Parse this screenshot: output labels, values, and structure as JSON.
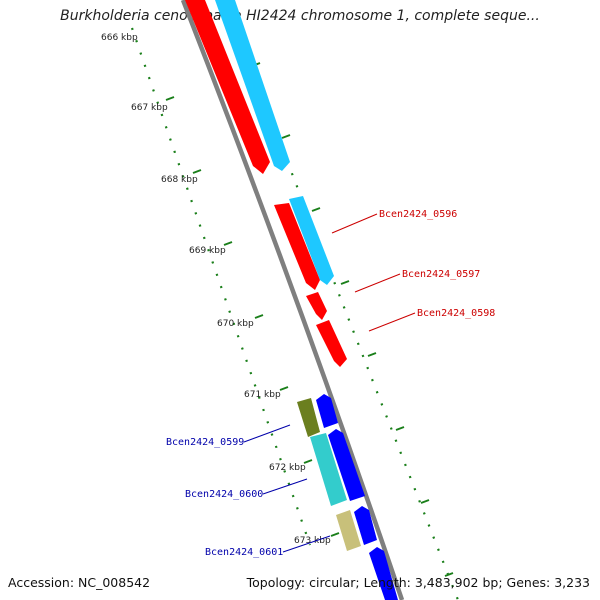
{
  "title": "Burkholderia cenocepacia HI2424 chromosome 1, complete seque...",
  "footer": {
    "accession": "Accession: NC_008542",
    "topology": "Topology: circular; Length: 3,483,902 bp; Genes: 3,233"
  },
  "ruler_labels": [
    "666 kbp",
    "667 kbp",
    "668 kbp",
    "669 kbp",
    "670 kbp",
    "671 kbp",
    "672 kbp",
    "673 kbp"
  ],
  "gene_labels": {
    "g0596": "Bcen2424_0596",
    "g0597": "Bcen2424_0597",
    "g0598": "Bcen2424_0598",
    "g0599": "Bcen2424_0599",
    "g0600": "Bcen2424_0600",
    "g0601": "Bcen2424_0601"
  },
  "colors": {
    "forward_gene": "#ff0000",
    "forward_cds": "#1ec8ff",
    "reverse_gene": "#0000ff",
    "backbone": "#7f7f7f",
    "ruler_dots": "#1a7f1a",
    "forward_label": "#cc0000",
    "reverse_label": "#0000aa",
    "olive": "#6b7f1f",
    "teal": "#33cccc",
    "khaki": "#c8c07a"
  }
}
